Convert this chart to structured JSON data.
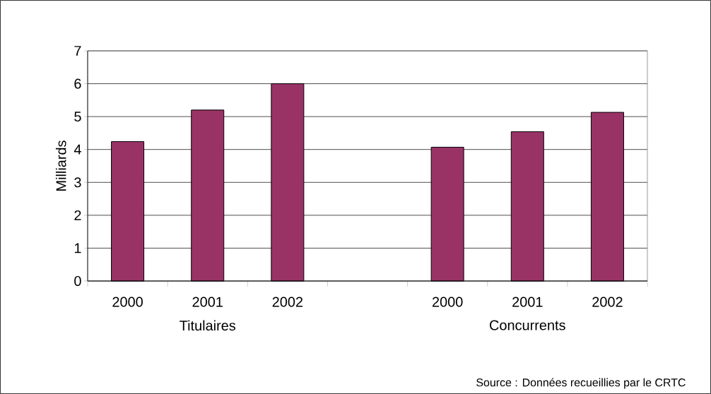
{
  "chart_data": {
    "type": "bar",
    "ylabel": "Milliards",
    "categories": [
      "2000",
      "2001",
      "2002",
      null,
      "2000",
      "2001",
      "2002"
    ],
    "values": [
      4.24,
      5.2,
      6.0,
      null,
      4.07,
      4.54,
      5.13
    ],
    "color": "#993366",
    "ylim": [
      0,
      7
    ],
    "yticks": [
      0,
      1,
      2,
      3,
      4,
      5,
      6,
      7
    ],
    "grid": "y",
    "annotations": [
      "Titulaires",
      "Concurrents",
      "Source : Données recueillies par le CRTC"
    ]
  }
}
